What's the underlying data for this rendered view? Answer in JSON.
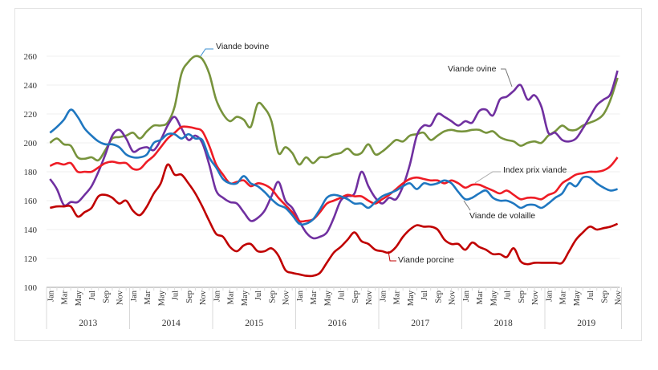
{
  "chart_data": {
    "type": "line",
    "title": "",
    "xlabel": "",
    "ylabel": "",
    "ylim": [
      100,
      260
    ],
    "yticks": [
      100,
      120,
      140,
      160,
      180,
      200,
      220,
      240,
      260
    ],
    "grid": "horizontal",
    "x_start": "Jan 2013",
    "x_end": "Nov 2019",
    "month_tick_labels": [
      "Jan",
      "Mar",
      "May",
      "Jul",
      "Sep",
      "Nov"
    ],
    "years": [
      "2013",
      "2014",
      "2015",
      "2016",
      "2017",
      "2018",
      "2019"
    ],
    "series": [
      {
        "name": "Viande bovine",
        "color": "#77933c",
        "values": [
          200,
          203,
          199,
          198,
          190,
          189,
          190,
          188,
          195,
          203,
          204,
          205,
          207,
          203,
          208,
          212,
          212,
          214,
          225,
          248,
          256,
          260,
          258,
          248,
          230,
          220,
          215,
          218,
          216,
          211,
          227,
          224,
          215,
          193,
          197,
          193,
          185,
          190,
          186,
          190,
          190,
          192,
          193,
          196,
          192,
          193,
          199,
          192,
          194,
          198,
          202,
          201,
          205,
          206,
          207,
          202,
          205,
          208,
          209,
          208,
          208,
          209,
          209,
          207,
          208,
          204,
          202,
          201,
          198,
          200,
          201,
          200,
          205,
          208,
          212,
          209,
          209,
          212,
          214,
          216,
          220,
          230,
          245
        ]
      },
      {
        "name": "Viande ovine",
        "color": "#7030a0",
        "values": [
          175,
          168,
          157,
          159,
          159,
          164,
          170,
          180,
          192,
          205,
          209,
          203,
          194,
          196,
          197,
          195,
          202,
          212,
          218,
          210,
          202,
          205,
          200,
          185,
          167,
          162,
          159,
          158,
          152,
          146,
          148,
          153,
          163,
          173,
          160,
          155,
          146,
          138,
          134,
          135,
          138,
          148,
          160,
          163,
          165,
          180,
          170,
          162,
          158,
          162,
          161,
          170,
          185,
          205,
          212,
          212,
          220,
          218,
          215,
          212,
          215,
          214,
          222,
          223,
          219,
          230,
          232,
          236,
          240,
          230,
          233,
          225,
          207,
          207,
          202,
          201,
          203,
          210,
          218,
          226,
          230,
          234,
          250
        ]
      },
      {
        "name": "Index prix viande",
        "color": "#ee1c25",
        "values": [
          184,
          186,
          185,
          186,
          180,
          180,
          180,
          183,
          186,
          187,
          186,
          186,
          182,
          182,
          187,
          191,
          197,
          203,
          207,
          211,
          211,
          210,
          208,
          198,
          185,
          178,
          172,
          173,
          174,
          170,
          172,
          171,
          168,
          162,
          157,
          152,
          146,
          146,
          147,
          152,
          158,
          160,
          162,
          164,
          163,
          163,
          160,
          158,
          161,
          164,
          168,
          172,
          175,
          176,
          175,
          174,
          174,
          172,
          174,
          172,
          169,
          171,
          171,
          169,
          167,
          165,
          167,
          164,
          161,
          162,
          162,
          161,
          164,
          166,
          172,
          175,
          178,
          179,
          180,
          180,
          181,
          184,
          190
        ]
      },
      {
        "name": "Viande de volaille",
        "color": "#1f77c0",
        "values": [
          207,
          211,
          216,
          223,
          218,
          210,
          205,
          201,
          199,
          199,
          197,
          192,
          190,
          190,
          192,
          200,
          202,
          206,
          206,
          203,
          206,
          203,
          202,
          190,
          183,
          175,
          172,
          172,
          177,
          172,
          170,
          166,
          161,
          157,
          155,
          150,
          144,
          144,
          147,
          154,
          162,
          164,
          163,
          161,
          158,
          158,
          155,
          159,
          163,
          165,
          167,
          170,
          172,
          168,
          172,
          171,
          172,
          174,
          172,
          166,
          161,
          162,
          165,
          167,
          162,
          160,
          160,
          158,
          155,
          157,
          157,
          155,
          158,
          162,
          165,
          172,
          170,
          176,
          176,
          172,
          169,
          167,
          168
        ]
      },
      {
        "name": "Viande porcine",
        "color": "#c00000",
        "values": [
          155,
          156,
          156,
          156,
          149,
          152,
          155,
          163,
          164,
          162,
          158,
          160,
          153,
          150,
          156,
          165,
          172,
          185,
          178,
          178,
          172,
          165,
          156,
          146,
          137,
          135,
          128,
          125,
          129,
          130,
          125,
          125,
          127,
          122,
          112,
          110,
          109,
          108,
          108,
          110,
          117,
          124,
          128,
          133,
          138,
          132,
          130,
          126,
          125,
          124,
          128,
          135,
          140,
          143,
          142,
          142,
          140,
          133,
          130,
          130,
          126,
          131,
          128,
          126,
          123,
          123,
          121,
          127,
          118,
          116,
          117,
          117,
          117,
          117,
          117,
          125,
          133,
          138,
          142,
          140,
          141,
          142,
          144
        ]
      }
    ],
    "annotations": [
      "Viande bovine",
      "Viande ovine",
      "Index prix viande",
      "Viande de volaille",
      "Viande porcine"
    ]
  }
}
